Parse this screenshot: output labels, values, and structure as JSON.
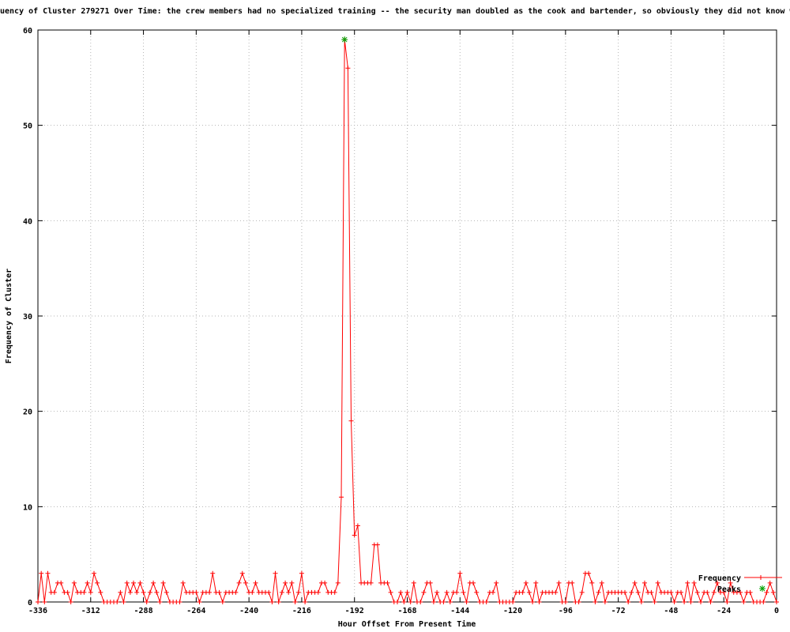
{
  "chart_data": {
    "type": "line",
    "title": "uency of Cluster 279271 Over Time: the crew members had no specialized training -- the security man doubled as the cook and bartender, so obviously they did not know w",
    "xlabel": "Hour Offset From Present Time",
    "ylabel": "Frequency of Cluster",
    "xlim": [
      -336,
      0
    ],
    "ylim": [
      0,
      60
    ],
    "xticks": [
      -336,
      -312,
      -288,
      -264,
      -240,
      -216,
      -192,
      -168,
      -144,
      -120,
      -96,
      -72,
      -48,
      -24,
      0
    ],
    "yticks": [
      0,
      10,
      20,
      30,
      40,
      50,
      60
    ],
    "grid": true,
    "grid_style": "dotted",
    "legend_position": "inside-bottom-right",
    "colors": {
      "frequency": "#ff0000",
      "peaks": "#00a000",
      "grid": "#b4b4b4",
      "axis": "#000000",
      "background": "#ffffff"
    },
    "peak_annotation": {
      "x": -196.5,
      "y": 59
    },
    "series": [
      {
        "name": "Frequency",
        "style": "linespoints",
        "marker": "plus",
        "color": "#ff0000",
        "x_start": -336,
        "x_step": 1.5,
        "values": [
          0,
          3,
          0,
          3,
          1,
          1,
          2,
          2,
          1,
          1,
          0,
          2,
          1,
          1,
          1,
          2,
          1,
          3,
          2,
          1,
          0,
          0,
          0,
          0,
          0,
          1,
          0,
          2,
          1,
          2,
          1,
          2,
          1,
          0,
          1,
          2,
          1,
          0,
          2,
          1,
          0,
          0,
          0,
          0,
          2,
          1,
          1,
          1,
          1,
          0,
          1,
          1,
          1,
          3,
          1,
          1,
          0,
          1,
          1,
          1,
          1,
          2,
          3,
          2,
          1,
          1,
          2,
          1,
          1,
          1,
          1,
          0,
          3,
          0,
          1,
          2,
          1,
          2,
          0,
          1,
          3,
          0,
          1,
          1,
          1,
          1,
          2,
          2,
          1,
          1,
          1,
          2,
          11,
          59,
          56,
          19,
          7,
          8,
          2,
          2,
          2,
          2,
          6,
          6,
          2,
          2,
          2,
          1,
          0,
          0,
          1,
          0,
          1,
          0,
          2,
          0,
          0,
          1,
          2,
          2,
          0,
          1,
          0,
          0,
          1,
          0,
          1,
          1,
          3,
          1,
          0,
          2,
          2,
          1,
          0,
          0,
          0,
          1,
          1,
          2,
          0,
          0,
          0,
          0,
          0,
          1,
          1,
          1,
          2,
          1,
          0,
          2,
          0,
          1,
          1,
          1,
          1,
          1,
          2,
          0,
          0,
          2,
          2,
          0,
          0,
          1,
          3,
          3,
          2,
          0,
          1,
          2,
          0,
          1,
          1,
          1,
          1,
          1,
          1,
          0,
          1,
          2,
          1,
          0,
          2,
          1,
          1,
          0,
          2,
          1,
          1,
          1,
          1,
          0,
          1,
          1,
          0,
          2,
          0,
          2,
          1,
          0,
          1,
          1,
          0,
          1,
          2,
          1,
          1,
          0,
          2,
          1,
          1,
          1,
          0,
          1,
          1,
          0,
          0,
          0,
          0,
          1,
          2,
          1,
          0
        ]
      },
      {
        "name": "Peaks",
        "style": "points",
        "marker": "asterisk",
        "color": "#00a000",
        "points": [
          [
            -196.5,
            59
          ]
        ]
      }
    ]
  }
}
